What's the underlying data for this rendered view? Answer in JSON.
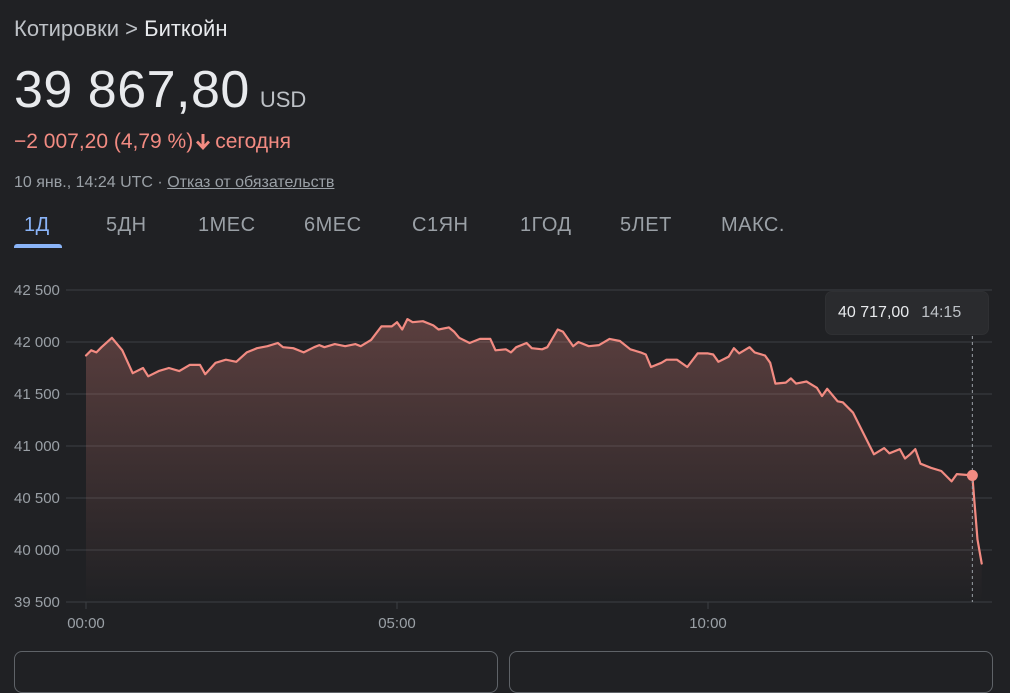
{
  "breadcrumb": {
    "parent": "Котировки",
    "separator": ">",
    "current": "Биткойн"
  },
  "price": {
    "value": "39 867,80",
    "currency": "USD"
  },
  "change": {
    "text": "−2 007,20 (4,79 %)",
    "period": "сегодня",
    "direction": "down",
    "color": "#f28b82"
  },
  "meta": {
    "timestamp": "10 янв., 14:24 UTC",
    "dot": "·",
    "disclaimer": "Отказ от обязательств"
  },
  "tabs": [
    {
      "label": "1Д",
      "active": true
    },
    {
      "label": "5ДН",
      "active": false
    },
    {
      "label": "1МЕС",
      "active": false
    },
    {
      "label": "6МЕС",
      "active": false
    },
    {
      "label": "С1ЯН",
      "active": false
    },
    {
      "label": "1ГОД",
      "active": false
    },
    {
      "label": "5ЛЕТ",
      "active": false
    },
    {
      "label": "МАКС.",
      "active": false
    }
  ],
  "tooltip": {
    "value": "40 717,00",
    "time": "14:15"
  },
  "colors": {
    "line": "#f28b82",
    "accent": "#8ab4f8",
    "background": "#202124",
    "grid": "#3c4043"
  },
  "chart_data": {
    "type": "area",
    "title": "",
    "xlabel": "",
    "ylabel": "",
    "ylim": [
      39500,
      42500
    ],
    "yticks": [
      {
        "value": 42500,
        "label": "42 500"
      },
      {
        "value": 42000,
        "label": "42 000"
      },
      {
        "value": 41500,
        "label": "41 500"
      },
      {
        "value": 41000,
        "label": "41 000"
      },
      {
        "value": 40500,
        "label": "40 500"
      },
      {
        "value": 40000,
        "label": "40 000"
      },
      {
        "value": 39500,
        "label": "39 500"
      }
    ],
    "xlim": [
      "00:00",
      "14:24"
    ],
    "xticks": [
      {
        "value": "00:00",
        "label": "00:00"
      },
      {
        "value": "05:00",
        "label": "05:00"
      },
      {
        "value": "10:00",
        "label": "10:00"
      }
    ],
    "grid": true,
    "highlight": {
      "time": "14:15",
      "value": 40717
    },
    "points": [
      [
        "00:00",
        41870
      ],
      [
        "00:05",
        41920
      ],
      [
        "00:10",
        41900
      ],
      [
        "00:15",
        41950
      ],
      [
        "00:25",
        42040
      ],
      [
        "00:35",
        41920
      ],
      [
        "00:45",
        41700
      ],
      [
        "00:55",
        41750
      ],
      [
        "01:00",
        41670
      ],
      [
        "01:10",
        41720
      ],
      [
        "01:20",
        41750
      ],
      [
        "01:30",
        41720
      ],
      [
        "01:40",
        41780
      ],
      [
        "01:50",
        41780
      ],
      [
        "01:55",
        41690
      ],
      [
        "02:05",
        41800
      ],
      [
        "02:15",
        41830
      ],
      [
        "02:25",
        41810
      ],
      [
        "02:35",
        41900
      ],
      [
        "02:45",
        41940
      ],
      [
        "02:55",
        41960
      ],
      [
        "03:05",
        41990
      ],
      [
        "03:10",
        41950
      ],
      [
        "03:20",
        41940
      ],
      [
        "03:30",
        41900
      ],
      [
        "03:40",
        41950
      ],
      [
        "03:45",
        41970
      ],
      [
        "03:50",
        41950
      ],
      [
        "04:00",
        41980
      ],
      [
        "04:10",
        41960
      ],
      [
        "04:20",
        41980
      ],
      [
        "04:25",
        41960
      ],
      [
        "04:35",
        42020
      ],
      [
        "04:45",
        42150
      ],
      [
        "04:55",
        42150
      ],
      [
        "05:00",
        42190
      ],
      [
        "05:05",
        42120
      ],
      [
        "05:10",
        42220
      ],
      [
        "05:15",
        42190
      ],
      [
        "05:25",
        42200
      ],
      [
        "05:35",
        42160
      ],
      [
        "05:40",
        42120
      ],
      [
        "05:50",
        42140
      ],
      [
        "05:55",
        42100
      ],
      [
        "06:00",
        42040
      ],
      [
        "06:10",
        41990
      ],
      [
        "06:20",
        42030
      ],
      [
        "06:30",
        42030
      ],
      [
        "06:35",
        41920
      ],
      [
        "06:45",
        41930
      ],
      [
        "06:50",
        41900
      ],
      [
        "06:55",
        41950
      ],
      [
        "07:05",
        41990
      ],
      [
        "07:10",
        41940
      ],
      [
        "07:20",
        41930
      ],
      [
        "07:25",
        41950
      ],
      [
        "07:35",
        42120
      ],
      [
        "07:40",
        42100
      ],
      [
        "07:50",
        41960
      ],
      [
        "07:55",
        42000
      ],
      [
        "08:05",
        41960
      ],
      [
        "08:15",
        41970
      ],
      [
        "08:25",
        42030
      ],
      [
        "08:35",
        42010
      ],
      [
        "08:45",
        41930
      ],
      [
        "08:55",
        41900
      ],
      [
        "09:00",
        41880
      ],
      [
        "09:05",
        41760
      ],
      [
        "09:15",
        41800
      ],
      [
        "09:20",
        41830
      ],
      [
        "09:30",
        41830
      ],
      [
        "09:40",
        41760
      ],
      [
        "09:50",
        41890
      ],
      [
        "10:00",
        41890
      ],
      [
        "10:05",
        41880
      ],
      [
        "10:10",
        41810
      ],
      [
        "10:20",
        41860
      ],
      [
        "10:25",
        41940
      ],
      [
        "10:30",
        41890
      ],
      [
        "10:40",
        41950
      ],
      [
        "10:45",
        41900
      ],
      [
        "10:55",
        41870
      ],
      [
        "11:00",
        41800
      ],
      [
        "11:05",
        41600
      ],
      [
        "11:15",
        41610
      ],
      [
        "11:20",
        41650
      ],
      [
        "11:25",
        41600
      ],
      [
        "11:35",
        41620
      ],
      [
        "11:45",
        41560
      ],
      [
        "11:50",
        41480
      ],
      [
        "11:55",
        41550
      ],
      [
        "12:05",
        41430
      ],
      [
        "12:10",
        41420
      ],
      [
        "12:20",
        41320
      ],
      [
        "12:30",
        41120
      ],
      [
        "12:40",
        40920
      ],
      [
        "12:50",
        40980
      ],
      [
        "12:55",
        40930
      ],
      [
        "13:05",
        40970
      ],
      [
        "13:10",
        40880
      ],
      [
        "13:15",
        40920
      ],
      [
        "13:20",
        40970
      ],
      [
        "13:25",
        40830
      ],
      [
        "13:35",
        40790
      ],
      [
        "13:45",
        40760
      ],
      [
        "13:55",
        40660
      ],
      [
        "14:00",
        40730
      ],
      [
        "14:15",
        40717
      ],
      [
        "14:20",
        40100
      ],
      [
        "14:24",
        39870
      ]
    ]
  }
}
